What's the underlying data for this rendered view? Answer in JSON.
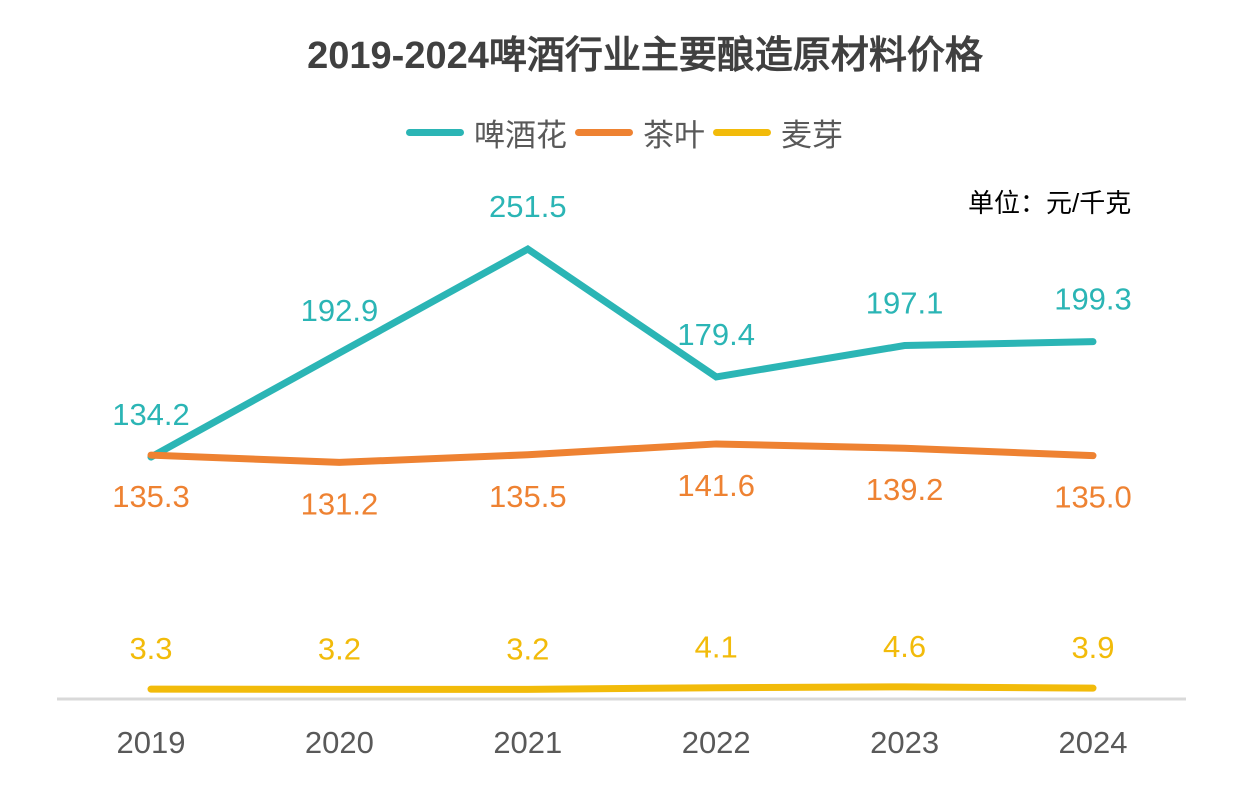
{
  "chart_data": {
    "type": "line",
    "title": "2019-2024啤酒行业主要酿造原材料价格",
    "unit": "单位：元/千克",
    "xlabel": "",
    "ylabel": "",
    "categories": [
      "2019",
      "2020",
      "2021",
      "2022",
      "2023",
      "2024"
    ],
    "grid": false,
    "legend_position": "top-center",
    "ylim": [
      0,
      260
    ],
    "series": [
      {
        "name": "啤酒花",
        "color": "#2bb5b5",
        "label_position": "above",
        "values": [
          134.2,
          192.9,
          251.5,
          179.4,
          197.1,
          199.3
        ]
      },
      {
        "name": "茶叶",
        "color": "#ee8232",
        "label_position": "below",
        "values": [
          135.3,
          131.2,
          135.5,
          141.6,
          139.2,
          135.0
        ]
      },
      {
        "name": "麦芽",
        "color": "#f2bb0a",
        "label_position": "above",
        "values": [
          3.3,
          3.2,
          3.2,
          4.1,
          4.6,
          3.9
        ]
      }
    ],
    "axis_color": "#d9d9d9",
    "tick_color": "#595959"
  }
}
